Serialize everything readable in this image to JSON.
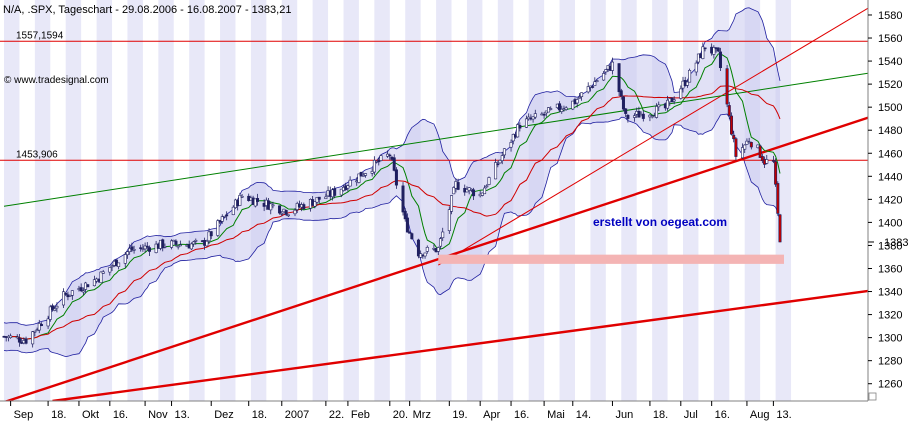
{
  "title": "N/A, .SPX, Tageschart - 29.08.2006 - 16.08.2007 - 1383,21",
  "watermark": "© www.tradesignal.com",
  "annotation": "erstellt von oegeat.com",
  "colors": {
    "background": "#ffffff",
    "band_stripe": "#e8e8f8",
    "bollinger_fill": "#c8c8ee",
    "bollinger_line": "#2020a0",
    "candle": "#202060",
    "candle_down": "#c00000",
    "ma_fast": "#008000",
    "ma_slow": "#d00000",
    "trendline_red": "#e00000",
    "trendline_green": "#008000",
    "support_zone": "#f4b4b4",
    "annotation_text": "#0000c0",
    "axis_text": "#000000"
  },
  "chart_data": {
    "type": "candlestick",
    "y_axis": {
      "min": 1245,
      "max": 1593,
      "ticks": [
        1260,
        1280,
        1300,
        1320,
        1340,
        1360,
        1380,
        1400,
        1420,
        1440,
        1460,
        1480,
        1500,
        1520,
        1540,
        1560,
        1580
      ],
      "current_value_label": "1383"
    },
    "x_axis": {
      "start": "2006-08-29",
      "end": "2007-08-16",
      "ticks": [
        {
          "label": "Sep",
          "date": "2006-09-01"
        },
        {
          "label": "18.",
          "date": "2006-09-18"
        },
        {
          "label": "Okt",
          "date": "2006-10-02"
        },
        {
          "label": "16.",
          "date": "2006-10-16"
        },
        {
          "label": "Nov",
          "date": "2006-11-01"
        },
        {
          "label": "13.",
          "date": "2006-11-13"
        },
        {
          "label": "Dez",
          "date": "2006-12-01"
        },
        {
          "label": "18.",
          "date": "2006-12-18"
        },
        {
          "label": "2007",
          "date": "2007-01-02"
        },
        {
          "label": "22.",
          "date": "2007-01-22"
        },
        {
          "label": "Feb",
          "date": "2007-02-01"
        },
        {
          "label": "20.",
          "date": "2007-02-20"
        },
        {
          "label": "Mrz",
          "date": "2007-03-01"
        },
        {
          "label": "19.",
          "date": "2007-03-19"
        },
        {
          "label": "Apr",
          "date": "2007-04-02"
        },
        {
          "label": "16.",
          "date": "2007-04-16"
        },
        {
          "label": "Mai",
          "date": "2007-05-01"
        },
        {
          "label": "14.",
          "date": "2007-05-14"
        },
        {
          "label": "Jun",
          "date": "2007-06-01"
        },
        {
          "label": "18.",
          "date": "2007-06-18"
        },
        {
          "label": "Jul",
          "date": "2007-07-02"
        },
        {
          "label": "16.",
          "date": "2007-07-16"
        },
        {
          "label": "Aug",
          "date": "2007-08-01"
        },
        {
          "label": "13.",
          "date": "2007-08-13"
        }
      ]
    },
    "horizontal_lines": [
      {
        "label": "1557,1594",
        "value": 1557.16
      },
      {
        "label": "1453,906",
        "value": 1453.91
      }
    ],
    "support_zone": {
      "from_date": "2007-03-14",
      "to_date": "2007-08-16",
      "low": 1364,
      "high": 1372
    },
    "trendlines": [
      {
        "kind": "red_thick",
        "from": {
          "date": "2006-08-29",
          "value": 1244
        },
        "to": {
          "date": "2007-08-16",
          "value": 1492
        }
      },
      {
        "kind": "red_thick",
        "from": {
          "date": "2006-09-20",
          "value": 1245
        },
        "to": {
          "date": "2007-08-16",
          "value": 1341
        }
      },
      {
        "kind": "red_thin",
        "from": {
          "date": "2007-03-14",
          "value": 1363
        },
        "to": {
          "date": "2007-08-16",
          "value": 1588
        }
      },
      {
        "kind": "green_thin",
        "from": {
          "date": "2006-08-29",
          "value": 1414
        },
        "to": {
          "date": "2007-08-16",
          "value": 1530
        }
      }
    ],
    "price_waypoints": [
      {
        "date": "2006-08-29",
        "value": 1301
      },
      {
        "date": "2006-09-08",
        "value": 1298
      },
      {
        "date": "2006-09-25",
        "value": 1336
      },
      {
        "date": "2006-10-10",
        "value": 1351
      },
      {
        "date": "2006-10-25",
        "value": 1376
      },
      {
        "date": "2006-11-10",
        "value": 1381
      },
      {
        "date": "2006-11-27",
        "value": 1381
      },
      {
        "date": "2006-12-15",
        "value": 1423
      },
      {
        "date": "2007-01-05",
        "value": 1410
      },
      {
        "date": "2007-01-25",
        "value": 1425
      },
      {
        "date": "2007-02-20",
        "value": 1459
      },
      {
        "date": "2007-02-27",
        "value": 1400
      },
      {
        "date": "2007-03-05",
        "value": 1374
      },
      {
        "date": "2007-03-14",
        "value": 1377
      },
      {
        "date": "2007-03-22",
        "value": 1433
      },
      {
        "date": "2007-04-02",
        "value": 1424
      },
      {
        "date": "2007-04-20",
        "value": 1485
      },
      {
        "date": "2007-05-15",
        "value": 1505
      },
      {
        "date": "2007-06-01",
        "value": 1537
      },
      {
        "date": "2007-06-07",
        "value": 1491
      },
      {
        "date": "2007-06-25",
        "value": 1499
      },
      {
        "date": "2007-07-05",
        "value": 1525
      },
      {
        "date": "2007-07-13",
        "value": 1553
      },
      {
        "date": "2007-07-19",
        "value": 1545
      },
      {
        "date": "2007-07-27",
        "value": 1458
      },
      {
        "date": "2007-08-02",
        "value": 1472
      },
      {
        "date": "2007-08-06",
        "value": 1463
      },
      {
        "date": "2007-08-09",
        "value": 1453
      },
      {
        "date": "2007-08-13",
        "value": 1452
      },
      {
        "date": "2007-08-16",
        "value": 1383
      }
    ]
  }
}
